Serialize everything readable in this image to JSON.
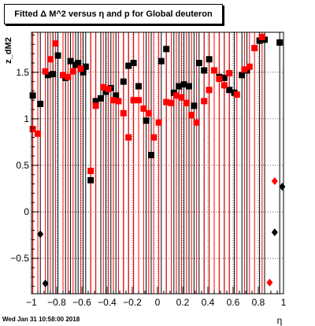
{
  "chart_data": {
    "type": "scatter",
    "title": "Fitted Δ M^2 versus η and p for Global deuteron",
    "xlabel": "η",
    "ylabel": "z_dM2",
    "xlim": [
      -1,
      1
    ],
    "ylim": [
      -0.88,
      1.93
    ],
    "x_ticks": [
      -1,
      -0.8,
      -0.6,
      -0.4,
      -0.2,
      0,
      0.2,
      0.4,
      0.6,
      0.8,
      1
    ],
    "x_tick_labels": [
      "−1",
      "−0.8",
      "−0.6",
      "−0.4",
      "−0.2",
      "0",
      "0.2",
      "0.4",
      "0.6",
      "0.8",
      "1"
    ],
    "y_ticks": [
      -0.5,
      0,
      0.5,
      1,
      1.5
    ],
    "y_tick_labels": [
      "−0.5",
      "0",
      "0.5",
      "1",
      "1.5"
    ],
    "grid": true,
    "series": [
      {
        "color": "#000000",
        "marker": "square",
        "points": [
          {
            "x": -0.99,
            "y": 1.25
          },
          {
            "x": -0.93,
            "y": 1.16
          },
          {
            "x": -0.87,
            "y": 1.47
          },
          {
            "x": -0.83,
            "y": 1.48
          },
          {
            "x": -0.79,
            "y": 1.68
          },
          {
            "x": -0.73,
            "y": 1.44
          },
          {
            "x": -0.69,
            "y": 1.62
          },
          {
            "x": -0.65,
            "y": 1.58
          },
          {
            "x": -0.63,
            "y": 1.6
          },
          {
            "x": -0.59,
            "y": 1.5
          },
          {
            "x": -0.57,
            "y": 1.56
          },
          {
            "x": -0.53,
            "y": 0.34
          },
          {
            "x": -0.49,
            "y": 1.19
          },
          {
            "x": -0.45,
            "y": 1.22
          },
          {
            "x": -0.41,
            "y": 1.29
          },
          {
            "x": -0.37,
            "y": 1.33
          },
          {
            "x": -0.33,
            "y": 1.25
          },
          {
            "x": -0.27,
            "y": 1.4
          },
          {
            "x": -0.23,
            "y": 1.57
          },
          {
            "x": -0.19,
            "y": 1.6
          },
          {
            "x": -0.15,
            "y": 1.35
          },
          {
            "x": -0.09,
            "y": 0.98
          },
          {
            "x": -0.05,
            "y": 0.61
          },
          {
            "x": 0.03,
            "y": 1.62
          },
          {
            "x": 0.07,
            "y": 1.75
          },
          {
            "x": 0.13,
            "y": 1.28
          },
          {
            "x": 0.17,
            "y": 1.35
          },
          {
            "x": 0.21,
            "y": 1.37
          },
          {
            "x": 0.25,
            "y": 1.35
          },
          {
            "x": 0.29,
            "y": 1.14
          },
          {
            "x": 0.33,
            "y": 1.6
          },
          {
            "x": 0.37,
            "y": 1.52
          },
          {
            "x": 0.41,
            "y": 1.64
          },
          {
            "x": 0.49,
            "y": 1.45
          },
          {
            "x": 0.53,
            "y": 1.44
          },
          {
            "x": 0.57,
            "y": 1.31
          },
          {
            "x": 0.61,
            "y": 1.28
          },
          {
            "x": 0.67,
            "y": 1.47
          },
          {
            "x": 0.71,
            "y": 1.52
          },
          {
            "x": 0.81,
            "y": 1.84
          },
          {
            "x": 0.85,
            "y": 1.85
          },
          {
            "x": 0.97,
            "y": 1.82
          }
        ]
      },
      {
        "color": "#ff0000",
        "marker": "square",
        "points": [
          {
            "x": -0.99,
            "y": 0.89
          },
          {
            "x": -0.95,
            "y": 0.84
          },
          {
            "x": -0.89,
            "y": 1.51
          },
          {
            "x": -0.85,
            "y": 1.64
          },
          {
            "x": -0.81,
            "y": 1.81
          },
          {
            "x": -0.75,
            "y": 1.47
          },
          {
            "x": -0.71,
            "y": 1.45
          },
          {
            "x": -0.67,
            "y": 1.51
          },
          {
            "x": -0.61,
            "y": 1.54
          },
          {
            "x": -0.53,
            "y": 0.44
          },
          {
            "x": -0.49,
            "y": 1.14
          },
          {
            "x": -0.43,
            "y": 1.34
          },
          {
            "x": -0.39,
            "y": 1.32
          },
          {
            "x": -0.35,
            "y": 1.2
          },
          {
            "x": -0.31,
            "y": 1.19
          },
          {
            "x": -0.27,
            "y": 1.06
          },
          {
            "x": -0.23,
            "y": 0.8
          },
          {
            "x": -0.19,
            "y": 1.2
          },
          {
            "x": -0.15,
            "y": 1.2
          },
          {
            "x": -0.11,
            "y": 1.11
          },
          {
            "x": -0.07,
            "y": 1.06
          },
          {
            "x": -0.03,
            "y": 0.8
          },
          {
            "x": 0.01,
            "y": 0.96
          },
          {
            "x": 0.07,
            "y": 1.18
          },
          {
            "x": 0.11,
            "y": 1.17
          },
          {
            "x": 0.15,
            "y": 1.25
          },
          {
            "x": 0.19,
            "y": 1.23
          },
          {
            "x": 0.23,
            "y": 1.17
          },
          {
            "x": 0.27,
            "y": 1.04
          },
          {
            "x": 0.31,
            "y": 0.96
          },
          {
            "x": 0.37,
            "y": 1.19
          },
          {
            "x": 0.41,
            "y": 1.31
          },
          {
            "x": 0.45,
            "y": 1.52
          },
          {
            "x": 0.49,
            "y": 1.43
          },
          {
            "x": 0.53,
            "y": 1.36
          },
          {
            "x": 0.57,
            "y": 1.49
          },
          {
            "x": 0.63,
            "y": 1.26
          },
          {
            "x": 0.69,
            "y": 1.53
          },
          {
            "x": 0.73,
            "y": 1.56
          },
          {
            "x": 0.77,
            "y": 1.76
          },
          {
            "x": 0.83,
            "y": 1.88
          }
        ]
      },
      {
        "color": "#000000",
        "marker": "diamond",
        "points": [
          {
            "x": -0.93,
            "y": -0.24
          },
          {
            "x": -0.89,
            "y": -0.77
          },
          {
            "x": 0.93,
            "y": -0.22
          },
          {
            "x": 0.99,
            "y": 0.27
          }
        ]
      },
      {
        "color": "#ff0000",
        "marker": "diamond",
        "points": [
          {
            "x": 0.89,
            "y": -0.76
          },
          {
            "x": 0.93,
            "y": 0.33
          }
        ]
      }
    ],
    "timestamp": "Wed Jan 31 10:58:00 2018"
  }
}
